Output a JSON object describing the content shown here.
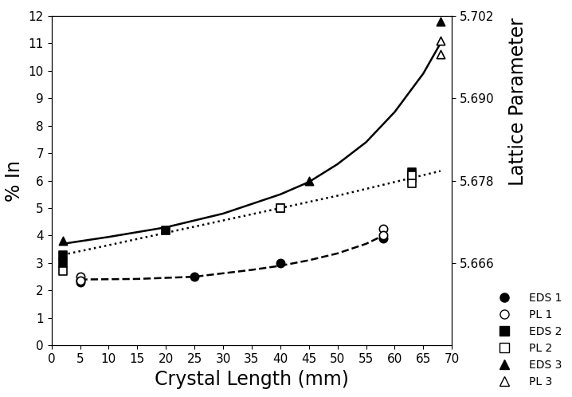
{
  "chart_data": {
    "type": "scatter",
    "x_label": "Crystal Length (mm)",
    "y_label": "% In",
    "y2_label": "Lattice Parameter",
    "xlim": [
      0,
      70
    ],
    "xticks": [
      0,
      5,
      10,
      15,
      20,
      25,
      30,
      35,
      40,
      45,
      50,
      55,
      60,
      65,
      70
    ],
    "ylim": [
      0,
      12
    ],
    "yticks": [
      0,
      1,
      2,
      3,
      4,
      5,
      6,
      7,
      8,
      9,
      10,
      11,
      12
    ],
    "y2lim": [
      5.654,
      5.702
    ],
    "y2ticks": [
      5.666,
      5.678,
      {
        "value": 5.69,
        "label": "5.690"
      },
      5.702
    ],
    "legend": "lower right",
    "series": [
      {
        "name": "EDS 1",
        "type": "scatter",
        "marker": "circle",
        "color": "#000000",
        "x": [
          5,
          5,
          25,
          40,
          58
        ],
        "values": [
          2.3,
          2.4,
          2.5,
          3.0,
          3.9
        ]
      },
      {
        "name": "PL 1",
        "type": "scatter",
        "marker": "open_circle",
        "color": "#000000",
        "x": [
          5,
          5,
          58,
          58
        ],
        "values": [
          2.5,
          2.35,
          4.25,
          4.0
        ]
      },
      {
        "name": "EDS 2",
        "type": "scatter",
        "marker": "square",
        "color": "#000000",
        "x": [
          2,
          2,
          20,
          40,
          63,
          63
        ],
        "values": [
          3.3,
          3.0,
          4.2,
          5.0,
          6.1,
          6.3
        ]
      },
      {
        "name": "PL 2",
        "type": "scatter",
        "marker": "open_square",
        "color": "#000000",
        "x": [
          2,
          40,
          63,
          63
        ],
        "values": [
          2.7,
          5.0,
          5.9,
          6.2
        ]
      },
      {
        "name": "EDS 3",
        "type": "scatter",
        "marker": "triangle",
        "color": "#000000",
        "x": [
          2,
          45,
          68
        ],
        "values": [
          3.8,
          6.0,
          11.8
        ]
      },
      {
        "name": "PL 3",
        "type": "scatter",
        "marker": "open_triangle",
        "color": "#000000",
        "x": [
          68,
          68
        ],
        "values": [
          11.1,
          10.6
        ]
      },
      {
        "type": "line",
        "line_style": "dashed",
        "color": "#000000",
        "x": [
          5,
          15,
          25,
          35,
          40,
          45,
          50,
          55,
          58
        ],
        "values": [
          2.4,
          2.42,
          2.5,
          2.75,
          2.9,
          3.1,
          3.35,
          3.7,
          4.0
        ]
      },
      {
        "type": "line",
        "line_style": "dotted",
        "color": "#000000",
        "x": [
          2,
          10,
          20,
          30,
          40,
          50,
          60,
          68
        ],
        "values": [
          3.3,
          3.65,
          4.1,
          4.55,
          5.0,
          5.45,
          5.95,
          6.35
        ]
      },
      {
        "type": "line",
        "line_style": "solid",
        "color": "#000000",
        "x": [
          2,
          10,
          20,
          30,
          40,
          45,
          50,
          55,
          60,
          65,
          68
        ],
        "values": [
          3.7,
          3.95,
          4.3,
          4.8,
          5.5,
          5.95,
          6.6,
          7.4,
          8.5,
          9.9,
          11.0
        ]
      }
    ]
  }
}
